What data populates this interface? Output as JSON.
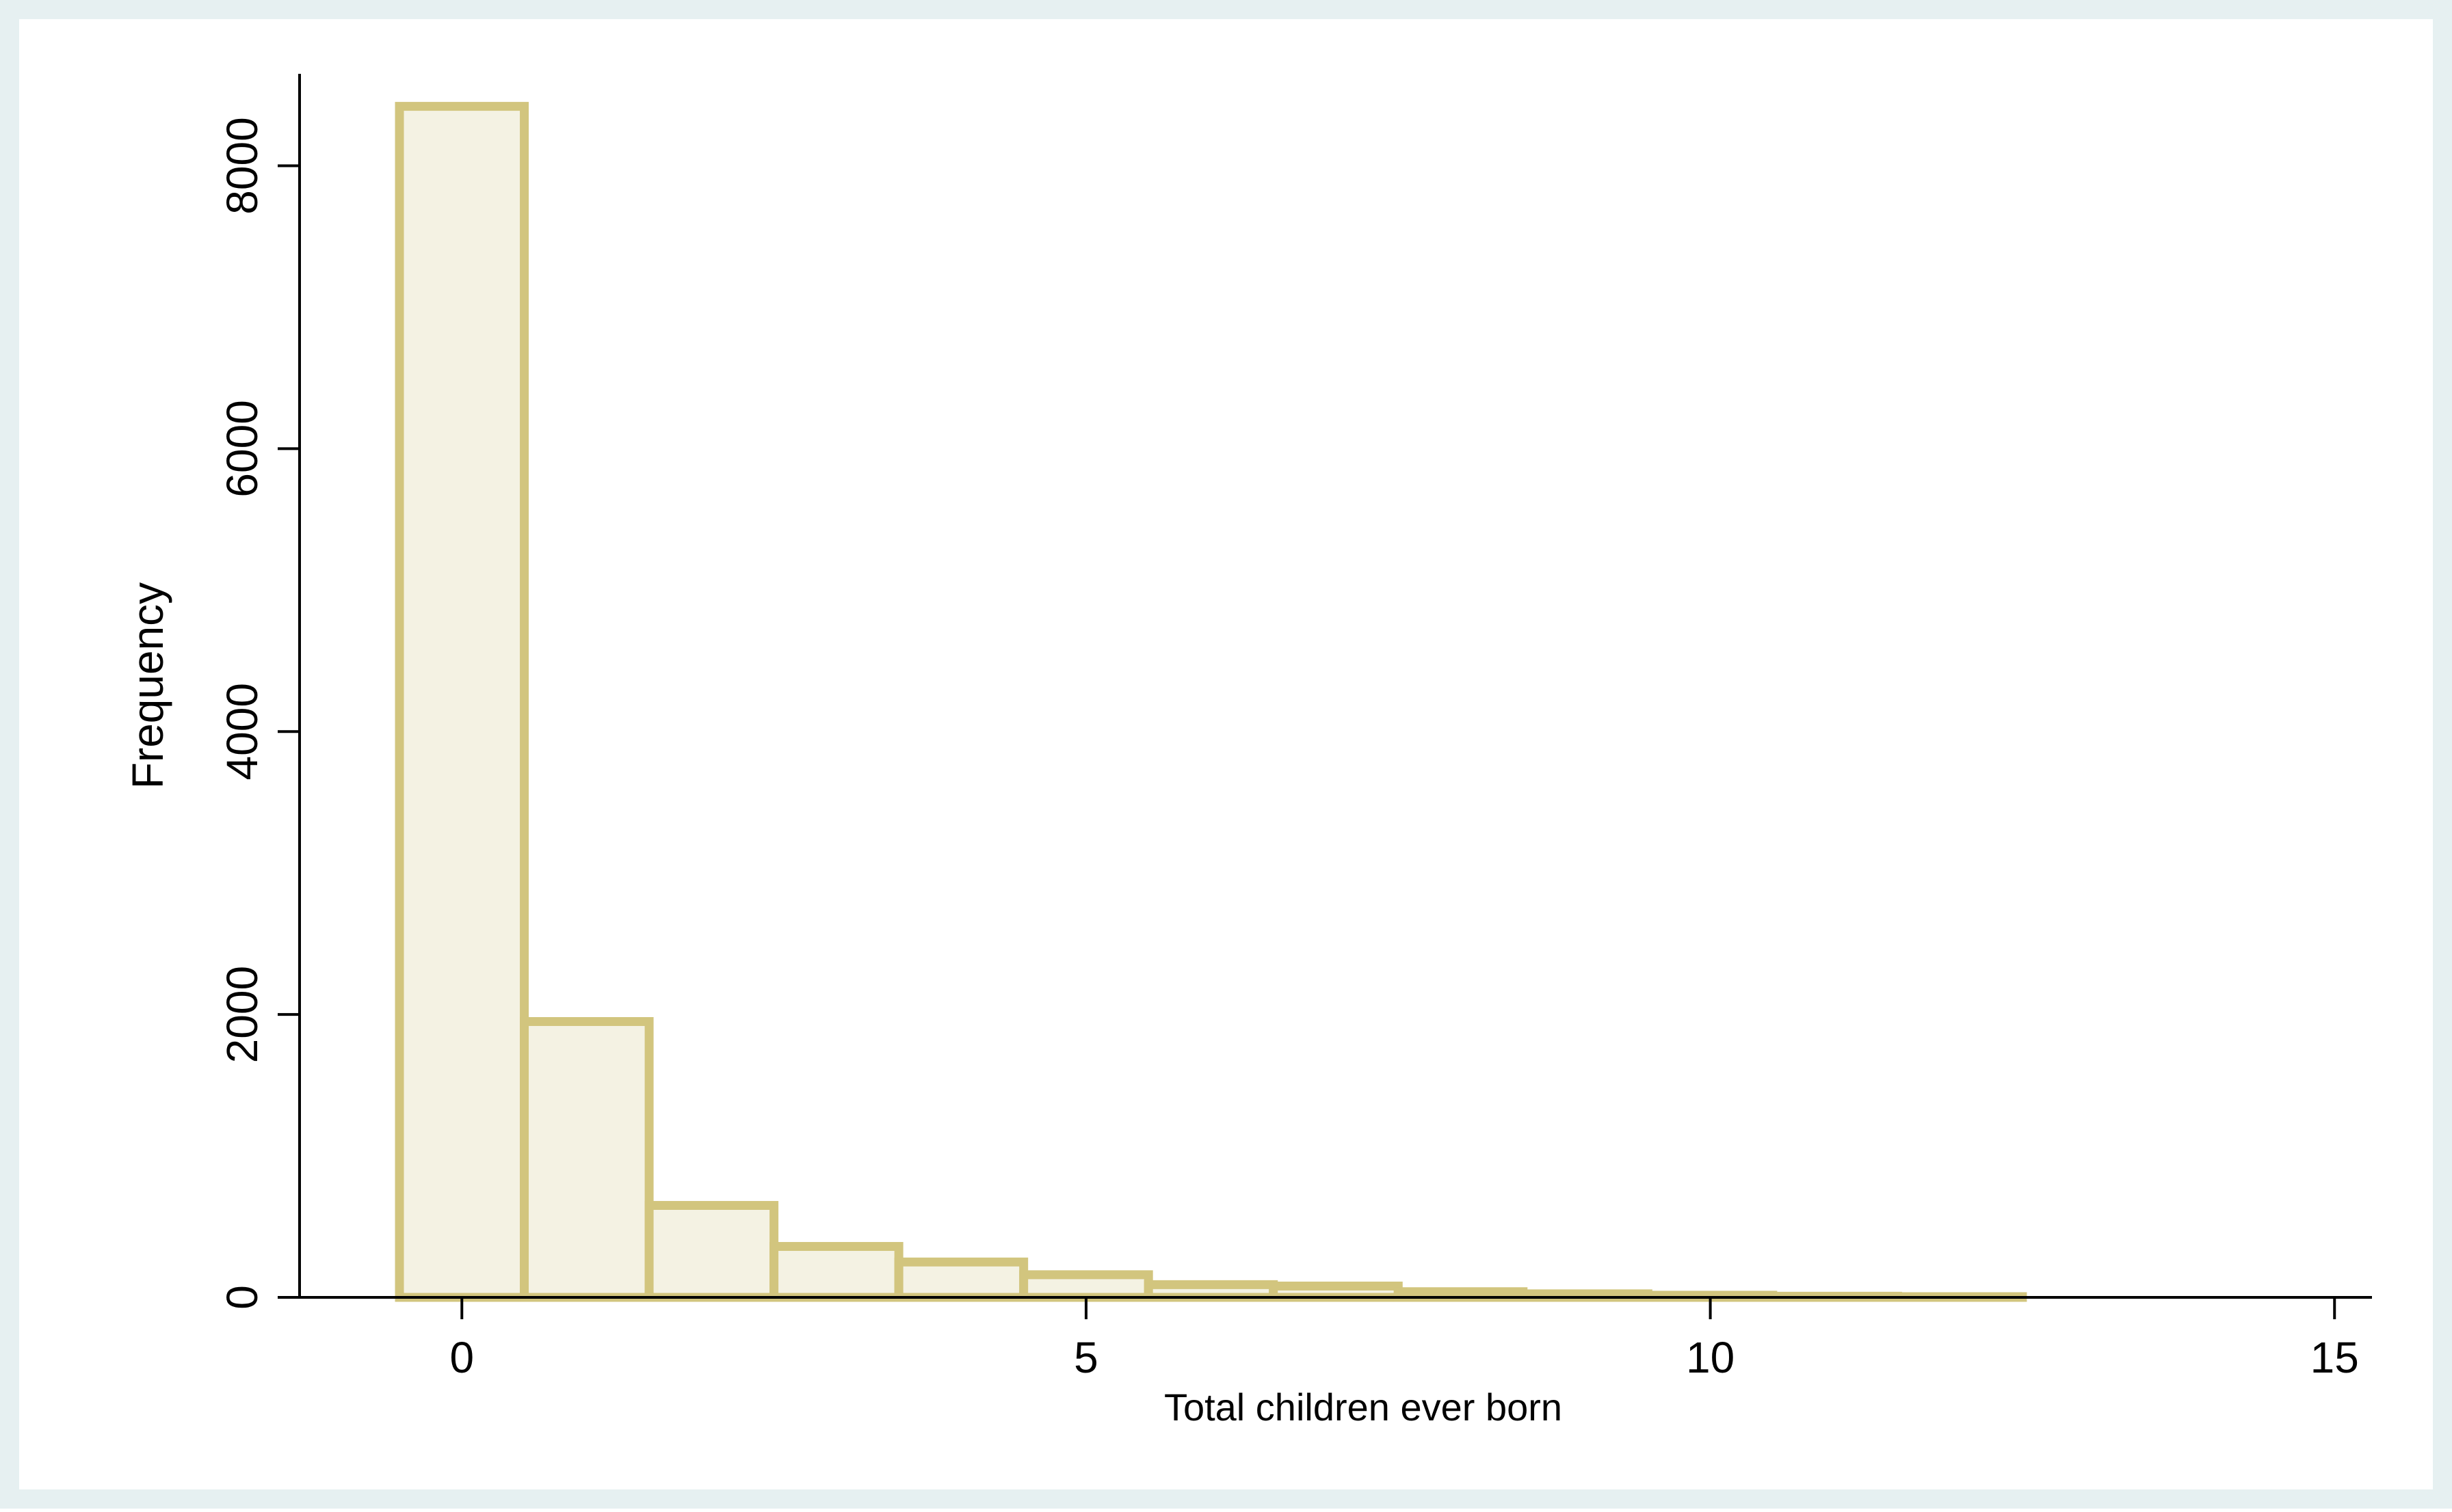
{
  "chart_data": {
    "type": "bar",
    "histogram": true,
    "xlabel": "Total children ever born",
    "ylabel": "Frequency",
    "x_ticks": [
      0,
      5,
      10,
      15
    ],
    "y_ticks": [
      0,
      2000,
      4000,
      6000,
      8000
    ],
    "xlim": [
      -1.3,
      15.3
    ],
    "ylim": [
      0,
      8650
    ],
    "bin_width": 1,
    "bins": [
      0,
      1,
      2,
      3,
      4,
      5,
      6,
      7,
      8,
      9,
      10,
      11,
      12
    ],
    "values": [
      8420,
      1950,
      650,
      360,
      250,
      160,
      90,
      80,
      40,
      25,
      15,
      8,
      5
    ],
    "grid": false,
    "legend": "none",
    "colors": {
      "outer_background": "#e6f0f1",
      "plot_background": "#ffffff",
      "bar_fill": "#f4f2e3",
      "bar_edge": "#d2c57e",
      "axis": "#000000"
    }
  }
}
